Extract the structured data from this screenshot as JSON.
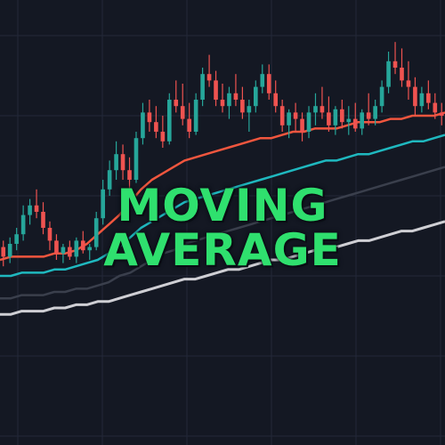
{
  "colors": {
    "background": "#141823",
    "grid": "#232838",
    "up": "#26a69a",
    "down": "#ef5350",
    "ma_fast": "#f0563e",
    "ma_mid": "#1fb8bf",
    "ma_slow": "#3a3f4c",
    "ma_long": "#cfcfd4",
    "title": "#2fe06e"
  },
  "chart_data": {
    "type": "candlestick",
    "title_lines": [
      "MOVING",
      "AVERAGE"
    ],
    "grid": true,
    "ylim": [
      0,
      100
    ],
    "candles": [
      [
        34,
        36,
        28,
        31
      ],
      [
        31,
        37,
        29,
        35
      ],
      [
        35,
        40,
        33,
        38
      ],
      [
        38,
        47,
        36,
        44
      ],
      [
        44,
        49,
        41,
        47
      ],
      [
        47,
        52,
        43,
        45
      ],
      [
        45,
        48,
        38,
        40
      ],
      [
        40,
        42,
        33,
        36
      ],
      [
        36,
        38,
        30,
        32
      ],
      [
        32,
        35,
        29,
        34
      ],
      [
        34,
        36,
        30,
        31
      ],
      [
        31,
        37,
        29,
        36
      ],
      [
        36,
        39,
        32,
        33
      ],
      [
        33,
        35,
        30,
        34
      ],
      [
        34,
        45,
        33,
        43
      ],
      [
        43,
        55,
        41,
        52
      ],
      [
        52,
        61,
        50,
        58
      ],
      [
        58,
        67,
        55,
        63
      ],
      [
        63,
        66,
        55,
        58
      ],
      [
        58,
        62,
        52,
        55
      ],
      [
        55,
        70,
        54,
        68
      ],
      [
        68,
        79,
        66,
        76
      ],
      [
        76,
        80,
        70,
        73
      ],
      [
        73,
        78,
        68,
        70
      ],
      [
        70,
        75,
        65,
        67
      ],
      [
        67,
        82,
        66,
        80
      ],
      [
        80,
        86,
        76,
        78
      ],
      [
        78,
        85,
        72,
        74
      ],
      [
        74,
        79,
        68,
        70
      ],
      [
        70,
        82,
        69,
        80
      ],
      [
        80,
        90,
        78,
        88
      ],
      [
        88,
        94,
        84,
        86
      ],
      [
        86,
        89,
        78,
        80
      ],
      [
        80,
        85,
        76,
        78
      ],
      [
        78,
        84,
        74,
        82
      ],
      [
        82,
        88,
        78,
        80
      ],
      [
        80,
        84,
        74,
        76
      ],
      [
        76,
        80,
        70,
        78
      ],
      [
        78,
        86,
        76,
        84
      ],
      [
        84,
        91,
        82,
        88
      ],
      [
        88,
        91,
        80,
        82
      ],
      [
        82,
        86,
        76,
        78
      ],
      [
        78,
        80,
        70,
        72
      ],
      [
        72,
        77,
        68,
        76
      ],
      [
        76,
        79,
        70,
        74
      ],
      [
        74,
        76,
        67,
        70
      ],
      [
        70,
        78,
        68,
        76
      ],
      [
        76,
        82,
        72,
        78
      ],
      [
        78,
        84,
        74,
        76
      ],
      [
        76,
        81,
        70,
        72
      ],
      [
        72,
        78,
        69,
        77
      ],
      [
        77,
        80,
        71,
        73
      ],
      [
        73,
        78,
        69,
        74
      ],
      [
        74,
        79,
        70,
        71
      ],
      [
        71,
        77,
        69,
        76
      ],
      [
        76,
        82,
        72,
        74
      ],
      [
        74,
        80,
        72,
        78
      ],
      [
        78,
        86,
        76,
        84
      ],
      [
        84,
        95,
        82,
        92
      ],
      [
        92,
        98,
        88,
        90
      ],
      [
        90,
        96,
        84,
        86
      ],
      [
        86,
        92,
        80,
        84
      ],
      [
        84,
        87,
        75,
        78
      ],
      [
        78,
        84,
        76,
        82
      ],
      [
        82,
        86,
        77,
        79
      ],
      [
        79,
        82,
        74,
        76
      ],
      [
        76,
        79,
        72,
        75
      ]
    ],
    "series": [
      {
        "key": "ma_fast",
        "values": [
          30,
          31,
          31,
          31,
          31,
          32,
          32,
          33,
          35,
          38,
          41,
          44,
          48,
          52,
          55,
          57,
          59,
          61,
          62,
          63,
          64,
          65,
          66,
          67,
          68,
          68,
          69,
          70,
          70,
          71,
          71,
          71,
          72,
          73,
          73,
          73,
          74,
          74,
          75,
          75,
          75,
          76
        ]
      },
      {
        "key": "ma_mid",
        "values": [
          25,
          25,
          26,
          26,
          26,
          27,
          27,
          28,
          29,
          30,
          32,
          34,
          37,
          40,
          42,
          44,
          46,
          48,
          49,
          50,
          51,
          52,
          53,
          54,
          55,
          56,
          57,
          58,
          59,
          60,
          61,
          61,
          62,
          63,
          63,
          64,
          65,
          66,
          67,
          67,
          68,
          69
        ]
      },
      {
        "key": "ma_slow",
        "values": [
          18,
          18,
          19,
          19,
          19,
          20,
          20,
          21,
          21,
          22,
          23,
          25,
          26,
          28,
          30,
          32,
          33,
          35,
          36,
          37,
          38,
          39,
          40,
          41,
          42,
          43,
          44,
          45,
          46,
          47,
          48,
          49,
          50,
          51,
          52,
          53,
          54,
          55,
          56,
          57,
          58,
          59
        ]
      },
      {
        "key": "ma_long",
        "values": [
          13,
          13,
          14,
          14,
          14,
          15,
          15,
          16,
          16,
          17,
          17,
          18,
          19,
          20,
          21,
          22,
          23,
          24,
          24,
          25,
          26,
          27,
          27,
          28,
          29,
          30,
          30,
          31,
          32,
          33,
          33,
          34,
          35,
          36,
          36,
          37,
          38,
          39,
          39,
          40,
          41,
          42
        ]
      }
    ]
  }
}
